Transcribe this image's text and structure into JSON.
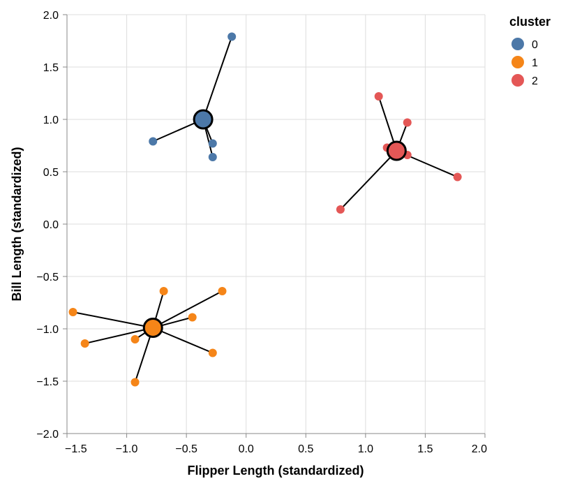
{
  "chart_data": {
    "type": "scatter",
    "xlabel": "Flipper Length (standardized)",
    "ylabel": "Bill Length (standardized)",
    "xlim": [
      -1.5,
      2.0
    ],
    "ylim": [
      -2.0,
      2.0
    ],
    "x_ticks": [
      "−1.5",
      "−1.0",
      "−0.5",
      "0.0",
      "0.5",
      "1.0",
      "1.5",
      "2.0"
    ],
    "x_tick_values": [
      -1.5,
      -1.0,
      -0.5,
      0.0,
      0.5,
      1.0,
      1.5,
      2.0
    ],
    "y_ticks": [
      "−2.0",
      "−1.5",
      "−1.0",
      "−0.5",
      "0.0",
      "0.5",
      "1.0",
      "1.5",
      "2.0"
    ],
    "y_tick_values": [
      -2.0,
      -1.5,
      -1.0,
      -0.5,
      0.0,
      0.5,
      1.0,
      1.5,
      2.0
    ],
    "grid": true,
    "legend": {
      "title": "cluster",
      "position": "top-right",
      "entries": [
        {
          "label": "0",
          "color": "#4c78a8"
        },
        {
          "label": "1",
          "color": "#f58518"
        },
        {
          "label": "2",
          "color": "#e45756"
        }
      ]
    },
    "clusters": [
      {
        "name": "0",
        "color": "#4c78a8",
        "centroid": {
          "x": -0.36,
          "y": 1.0
        },
        "points": [
          {
            "x": -0.12,
            "y": 1.79
          },
          {
            "x": -0.78,
            "y": 0.79
          },
          {
            "x": -0.28,
            "y": 0.77
          },
          {
            "x": -0.28,
            "y": 0.64
          }
        ]
      },
      {
        "name": "1",
        "color": "#f58518",
        "centroid": {
          "x": -0.78,
          "y": -0.99
        },
        "points": [
          {
            "x": -1.45,
            "y": -0.84
          },
          {
            "x": -1.35,
            "y": -1.14
          },
          {
            "x": -0.93,
            "y": -1.1
          },
          {
            "x": -0.93,
            "y": -1.51
          },
          {
            "x": -0.69,
            "y": -0.64
          },
          {
            "x": -0.45,
            "y": -0.89
          },
          {
            "x": -0.28,
            "y": -1.23
          },
          {
            "x": -0.2,
            "y": -0.64
          }
        ]
      },
      {
        "name": "2",
        "color": "#e45756",
        "centroid": {
          "x": 1.26,
          "y": 0.7
        },
        "points": [
          {
            "x": 1.11,
            "y": 1.22
          },
          {
            "x": 1.35,
            "y": 0.97
          },
          {
            "x": 1.18,
            "y": 0.73
          },
          {
            "x": 1.35,
            "y": 0.66
          },
          {
            "x": 1.77,
            "y": 0.45
          },
          {
            "x": 0.79,
            "y": 0.14
          }
        ]
      }
    ]
  }
}
